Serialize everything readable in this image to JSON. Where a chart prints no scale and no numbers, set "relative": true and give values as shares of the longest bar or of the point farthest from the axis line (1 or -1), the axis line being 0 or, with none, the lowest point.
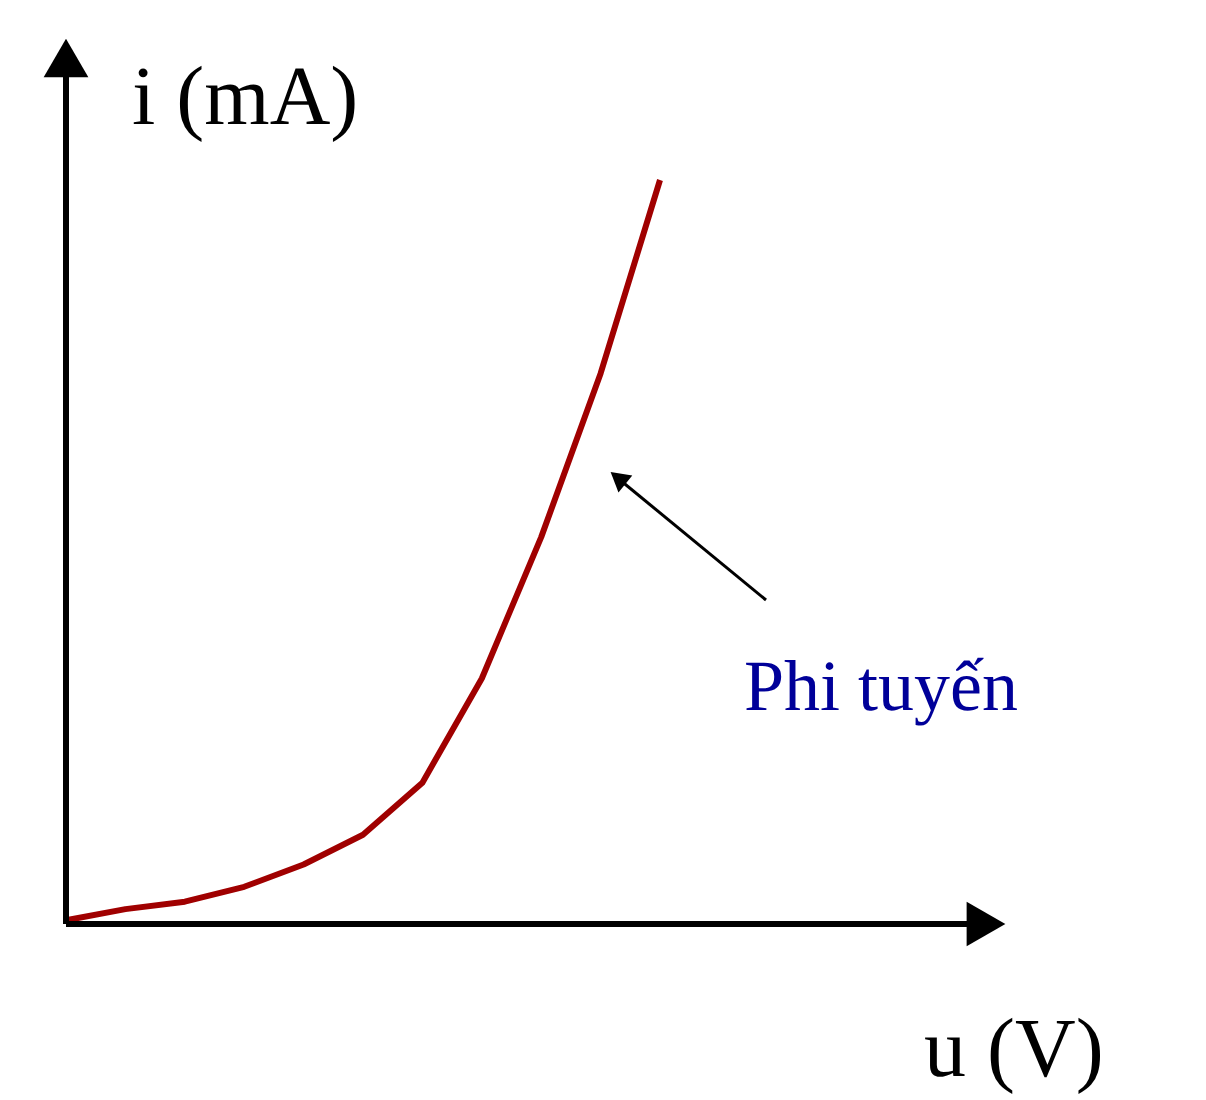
{
  "chart_data": {
    "type": "line",
    "relative": true,
    "xlabel": "u (V)",
    "ylabel": "i (mA)",
    "categories": [
      null,
      null,
      null,
      null,
      null,
      null,
      null,
      null,
      null,
      null,
      null
    ],
    "series": [
      {
        "color": "#a00000",
        "values": [
          0.005,
          0.02,
          0.03,
          0.05,
          0.08,
          0.12,
          0.19,
          0.33,
          0.52,
          0.74,
          1.0
        ]
      }
    ],
    "annotations": [
      "Phi tuyến"
    ]
  }
}
